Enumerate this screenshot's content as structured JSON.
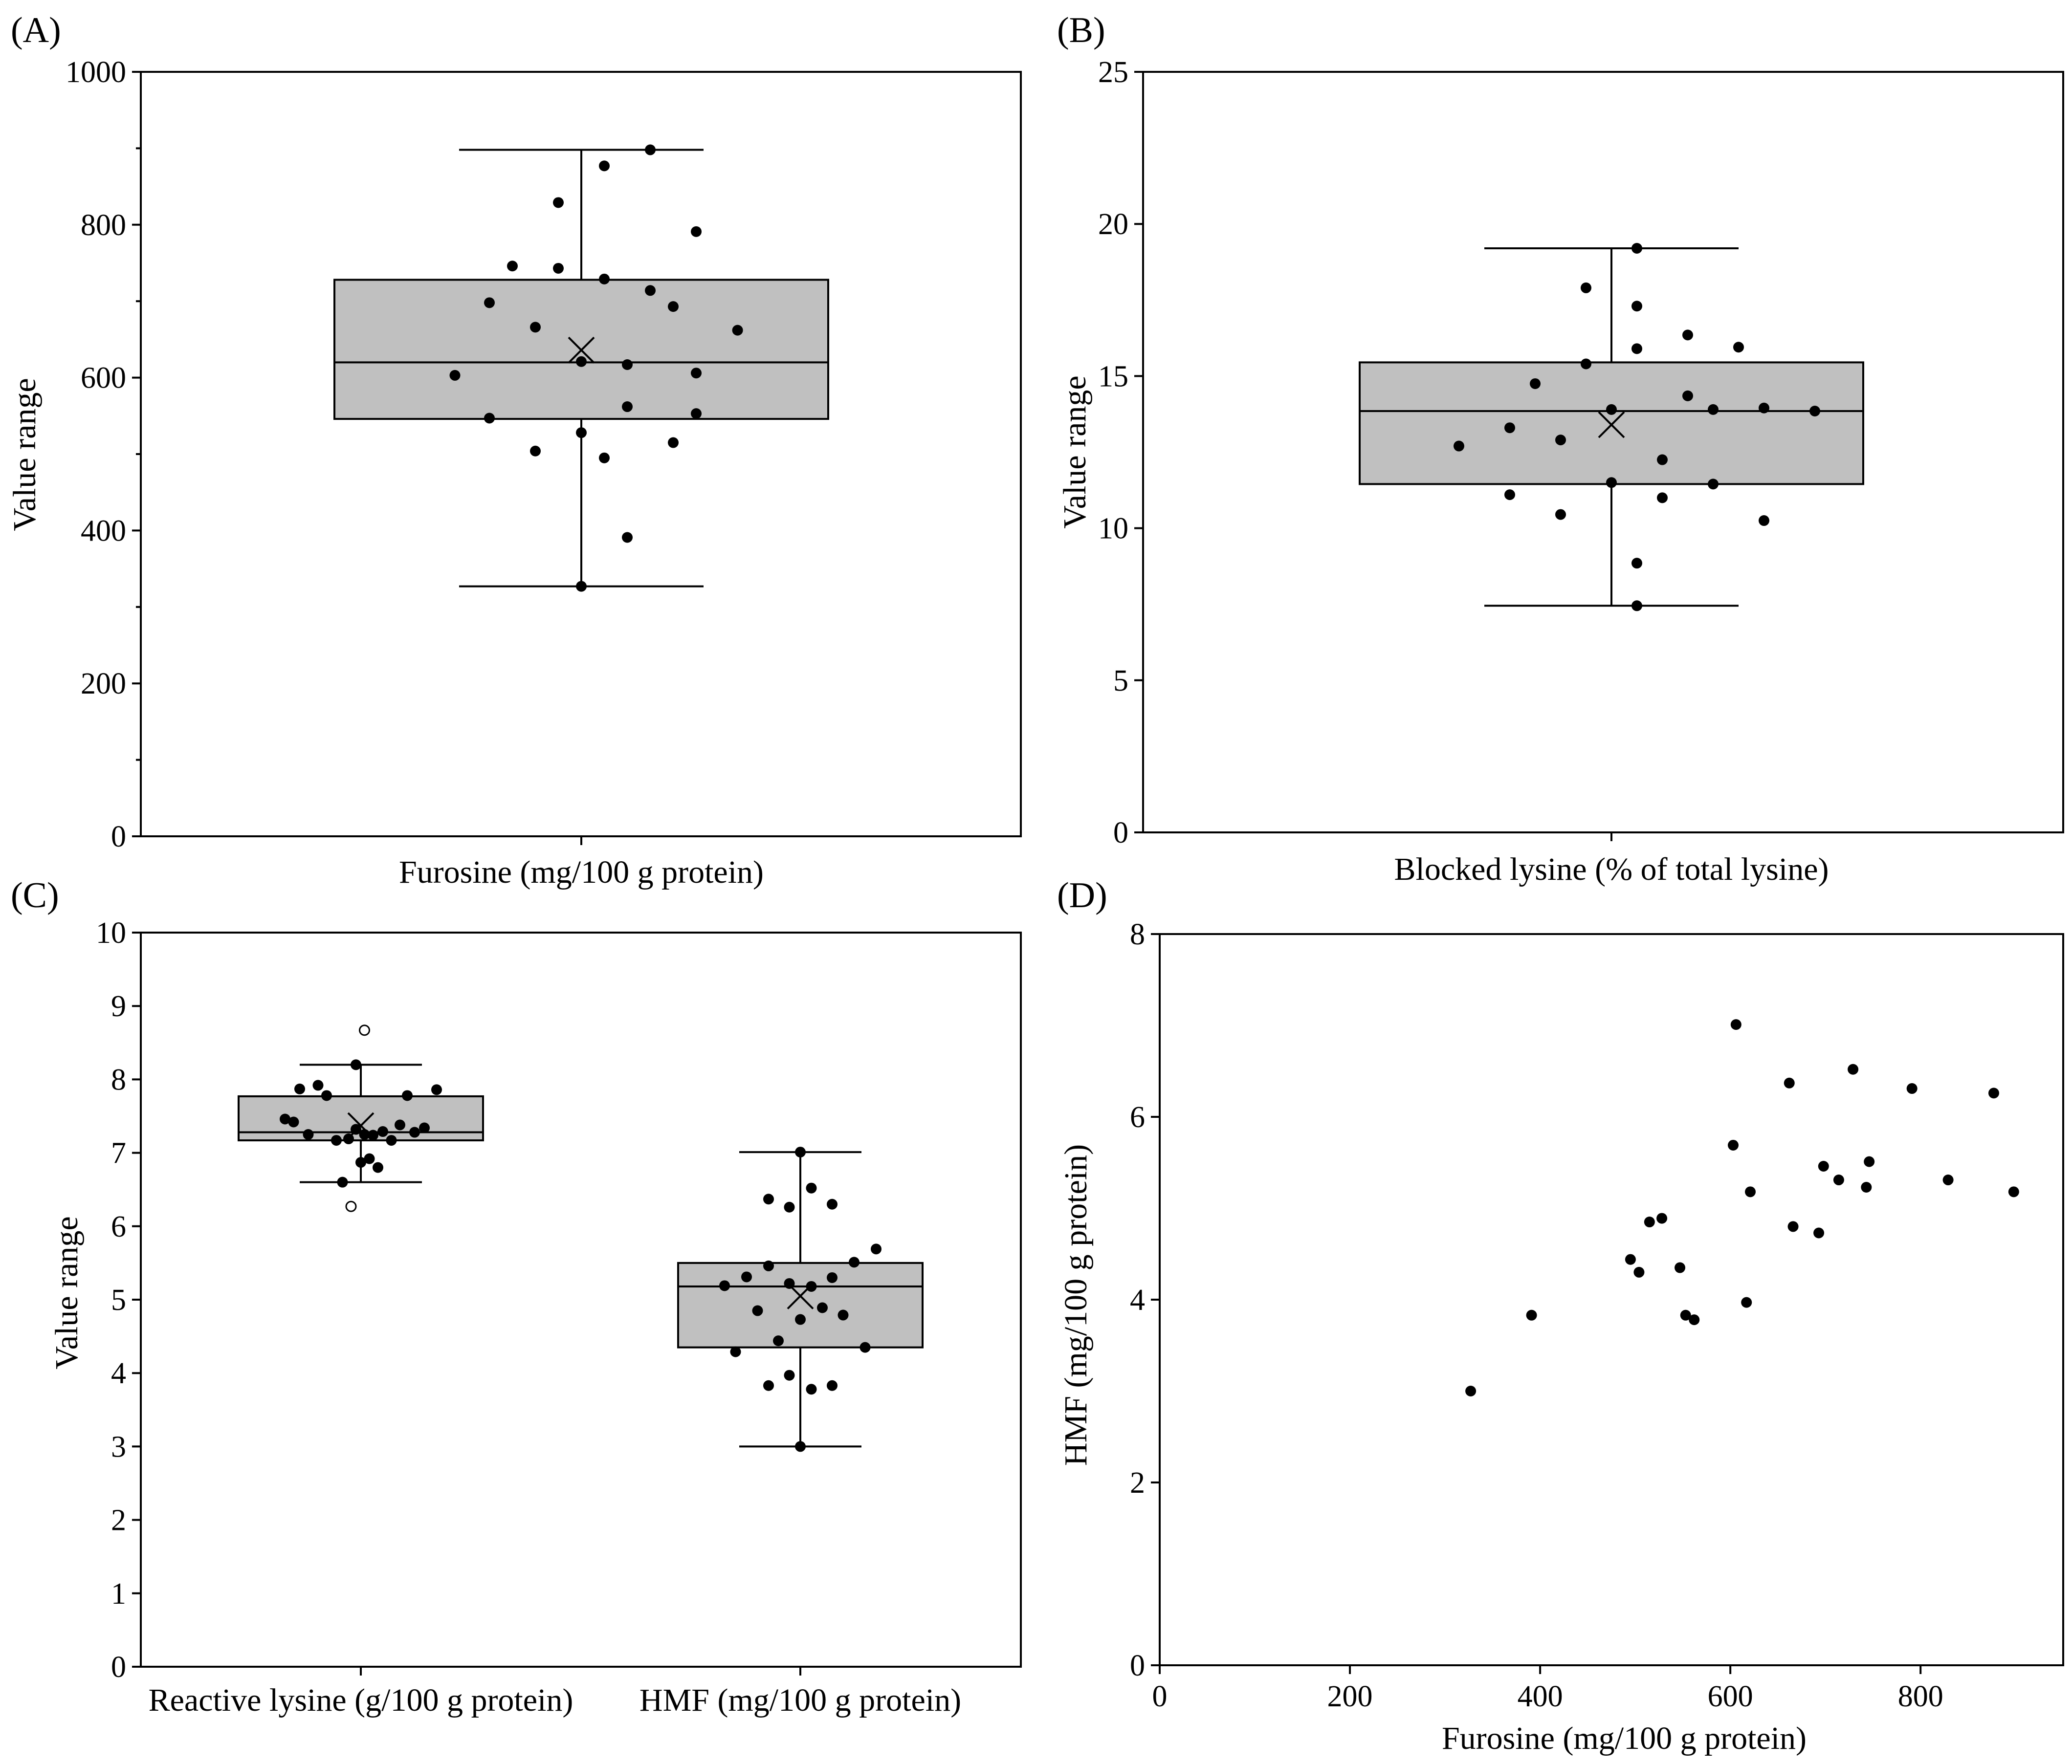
{
  "colors": {
    "box_fill": "#c0c0c0",
    "ink": "#000000",
    "background": "#ffffff"
  },
  "chart_data": [
    {
      "panel": "(A)",
      "type": "box",
      "ylabel": "Value range",
      "ylim": [
        0,
        1000
      ],
      "yticks": [
        0,
        200,
        400,
        600,
        800,
        1000
      ],
      "categories": [
        "Furosine (mg/100 g protein)"
      ],
      "boxes": [
        {
          "category": "Furosine (mg/100 g protein)",
          "whisker_low": 327,
          "q1": 546,
          "median": 620,
          "q3": 728,
          "whisker_high": 898,
          "mean": 636,
          "points": [
            {
              "offset": -0.55,
              "y": 603
            },
            {
              "offset": -0.4,
              "y": 698
            },
            {
              "offset": -0.4,
              "y": 547
            },
            {
              "offset": -0.3,
              "y": 746
            },
            {
              "offset": -0.2,
              "y": 666
            },
            {
              "offset": -0.2,
              "y": 504
            },
            {
              "offset": -0.1,
              "y": 829
            },
            {
              "offset": -0.1,
              "y": 743
            },
            {
              "offset": 0.0,
              "y": 621
            },
            {
              "offset": 0.0,
              "y": 528
            },
            {
              "offset": 0.0,
              "y": 327
            },
            {
              "offset": 0.1,
              "y": 877
            },
            {
              "offset": 0.1,
              "y": 729
            },
            {
              "offset": 0.1,
              "y": 495
            },
            {
              "offset": 0.2,
              "y": 617
            },
            {
              "offset": 0.2,
              "y": 562
            },
            {
              "offset": 0.2,
              "y": 391
            },
            {
              "offset": 0.3,
              "y": 898
            },
            {
              "offset": 0.3,
              "y": 714
            },
            {
              "offset": 0.4,
              "y": 693
            },
            {
              "offset": 0.4,
              "y": 515
            },
            {
              "offset": 0.5,
              "y": 791
            },
            {
              "offset": 0.5,
              "y": 606
            },
            {
              "offset": 0.5,
              "y": 553
            },
            {
              "offset": 0.68,
              "y": 662
            }
          ],
          "outliers": []
        }
      ]
    },
    {
      "panel": "(B)",
      "type": "box",
      "ylabel": "Value range",
      "ylim": [
        0,
        25
      ],
      "yticks": [
        0,
        5,
        10,
        15,
        20,
        25
      ],
      "categories": [
        "Blocked lysine (% of total lysine)"
      ],
      "boxes": [
        {
          "category": "Blocked lysine (% of total lysine)",
          "whisker_low": 7.45,
          "q1": 11.45,
          "median": 13.85,
          "q3": 15.45,
          "whisker_high": 19.2,
          "mean": 13.4,
          "points": [
            {
              "offset": -0.6,
              "y": 12.7
            },
            {
              "offset": -0.4,
              "y": 13.3
            },
            {
              "offset": -0.4,
              "y": 11.1
            },
            {
              "offset": -0.3,
              "y": 14.75
            },
            {
              "offset": -0.2,
              "y": 12.9
            },
            {
              "offset": -0.2,
              "y": 10.45
            },
            {
              "offset": -0.1,
              "y": 17.9
            },
            {
              "offset": -0.1,
              "y": 15.4
            },
            {
              "offset": 0.0,
              "y": 13.9
            },
            {
              "offset": 0.0,
              "y": 11.5
            },
            {
              "offset": 0.1,
              "y": 19.2
            },
            {
              "offset": 0.1,
              "y": 17.3
            },
            {
              "offset": 0.1,
              "y": 15.9
            },
            {
              "offset": 0.1,
              "y": 8.85
            },
            {
              "offset": 0.1,
              "y": 7.45
            },
            {
              "offset": 0.2,
              "y": 12.25
            },
            {
              "offset": 0.2,
              "y": 11.0
            },
            {
              "offset": 0.3,
              "y": 16.35
            },
            {
              "offset": 0.3,
              "y": 14.35
            },
            {
              "offset": 0.4,
              "y": 13.9
            },
            {
              "offset": 0.4,
              "y": 11.45
            },
            {
              "offset": 0.5,
              "y": 15.95
            },
            {
              "offset": 0.6,
              "y": 13.95
            },
            {
              "offset": 0.6,
              "y": 10.25
            },
            {
              "offset": 0.8,
              "y": 13.85
            }
          ],
          "outliers": []
        }
      ]
    },
    {
      "panel": "(C)",
      "type": "box",
      "ylabel": "Value range",
      "ylim": [
        0,
        10
      ],
      "yticks": [
        0,
        1,
        2,
        3,
        4,
        5,
        6,
        7,
        8,
        9,
        10
      ],
      "categories": [
        "Reactive lysine (g/100 g protein)",
        "HMF (mg/100 g protein)"
      ],
      "boxes": [
        {
          "category": "Reactive lysine (g/100 g protein)",
          "whisker_low": 6.6,
          "q1": 7.17,
          "median": 7.28,
          "q3": 7.77,
          "whisker_high": 8.2,
          "mean": 7.37,
          "points": [
            {
              "offset": -0.62,
              "y": 7.46
            },
            {
              "offset": -0.55,
              "y": 7.42
            },
            {
              "offset": -0.5,
              "y": 7.87
            },
            {
              "offset": -0.43,
              "y": 7.25
            },
            {
              "offset": -0.35,
              "y": 7.92
            },
            {
              "offset": -0.28,
              "y": 7.78
            },
            {
              "offset": -0.2,
              "y": 7.17
            },
            {
              "offset": -0.15,
              "y": 6.6
            },
            {
              "offset": -0.1,
              "y": 7.19
            },
            {
              "offset": -0.04,
              "y": 8.2
            },
            {
              "offset": -0.04,
              "y": 7.32
            },
            {
              "offset": 0.0,
              "y": 6.87
            },
            {
              "offset": 0.03,
              "y": 7.25
            },
            {
              "offset": 0.07,
              "y": 6.92
            },
            {
              "offset": 0.1,
              "y": 7.24
            },
            {
              "offset": 0.14,
              "y": 6.8
            },
            {
              "offset": 0.18,
              "y": 7.29
            },
            {
              "offset": 0.25,
              "y": 7.17
            },
            {
              "offset": 0.32,
              "y": 7.38
            },
            {
              "offset": 0.38,
              "y": 7.78
            },
            {
              "offset": 0.44,
              "y": 7.28
            },
            {
              "offset": 0.52,
              "y": 7.34
            },
            {
              "offset": 0.62,
              "y": 7.86
            }
          ],
          "outliers": [
            {
              "offset": 0.03,
              "y": 8.67
            },
            {
              "offset": -0.08,
              "y": 6.27
            }
          ]
        },
        {
          "category": "HMF (mg/100 g protein)",
          "whisker_low": 3.0,
          "q1": 4.35,
          "median": 5.18,
          "q3": 5.5,
          "whisker_high": 7.01,
          "mean": 5.05,
          "points": [
            {
              "offset": -0.62,
              "y": 5.19
            },
            {
              "offset": -0.53,
              "y": 4.29
            },
            {
              "offset": -0.44,
              "y": 5.31
            },
            {
              "offset": -0.35,
              "y": 4.85
            },
            {
              "offset": -0.26,
              "y": 6.37
            },
            {
              "offset": -0.26,
              "y": 5.46
            },
            {
              "offset": -0.26,
              "y": 3.83
            },
            {
              "offset": -0.18,
              "y": 4.44
            },
            {
              "offset": -0.09,
              "y": 6.26
            },
            {
              "offset": -0.09,
              "y": 5.22
            },
            {
              "offset": -0.09,
              "y": 3.97
            },
            {
              "offset": 0.0,
              "y": 7.01
            },
            {
              "offset": 0.0,
              "y": 4.73
            },
            {
              "offset": 0.0,
              "y": 3.0
            },
            {
              "offset": 0.09,
              "y": 6.52
            },
            {
              "offset": 0.09,
              "y": 5.18
            },
            {
              "offset": 0.09,
              "y": 3.78
            },
            {
              "offset": 0.18,
              "y": 4.89
            },
            {
              "offset": 0.26,
              "y": 6.3
            },
            {
              "offset": 0.26,
              "y": 5.3
            },
            {
              "offset": 0.26,
              "y": 3.83
            },
            {
              "offset": 0.35,
              "y": 4.79
            },
            {
              "offset": 0.44,
              "y": 5.51
            },
            {
              "offset": 0.53,
              "y": 4.35
            },
            {
              "offset": 0.62,
              "y": 5.69
            }
          ],
          "outliers": []
        }
      ]
    },
    {
      "panel": "(D)",
      "type": "scatter",
      "xlabel": "Furosine (mg/100 g protein)",
      "ylabel": "HMF (mg/100 g protein)",
      "xlim": [
        0,
        950
      ],
      "ylim": [
        0,
        8
      ],
      "xticks": [
        0,
        200,
        400,
        600,
        800
      ],
      "yticks": [
        0,
        2,
        4,
        6,
        8
      ],
      "points": [
        {
          "x": 327,
          "y": 3.0
        },
        {
          "x": 391,
          "y": 3.83
        },
        {
          "x": 495,
          "y": 4.44
        },
        {
          "x": 504,
          "y": 4.3
        },
        {
          "x": 515,
          "y": 4.85
        },
        {
          "x": 528,
          "y": 4.89
        },
        {
          "x": 547,
          "y": 4.35
        },
        {
          "x": 553,
          "y": 3.83
        },
        {
          "x": 562,
          "y": 3.78
        },
        {
          "x": 603,
          "y": 5.69
        },
        {
          "x": 606,
          "y": 7.01
        },
        {
          "x": 617,
          "y": 3.97
        },
        {
          "x": 621,
          "y": 5.18
        },
        {
          "x": 662,
          "y": 6.37
        },
        {
          "x": 666,
          "y": 4.8
        },
        {
          "x": 693,
          "y": 4.73
        },
        {
          "x": 698,
          "y": 5.46
        },
        {
          "x": 714,
          "y": 5.31
        },
        {
          "x": 729,
          "y": 6.52
        },
        {
          "x": 743,
          "y": 5.23
        },
        {
          "x": 746,
          "y": 5.51
        },
        {
          "x": 791,
          "y": 6.31
        },
        {
          "x": 829,
          "y": 5.31
        },
        {
          "x": 877,
          "y": 6.26
        },
        {
          "x": 898,
          "y": 5.18
        }
      ]
    }
  ]
}
